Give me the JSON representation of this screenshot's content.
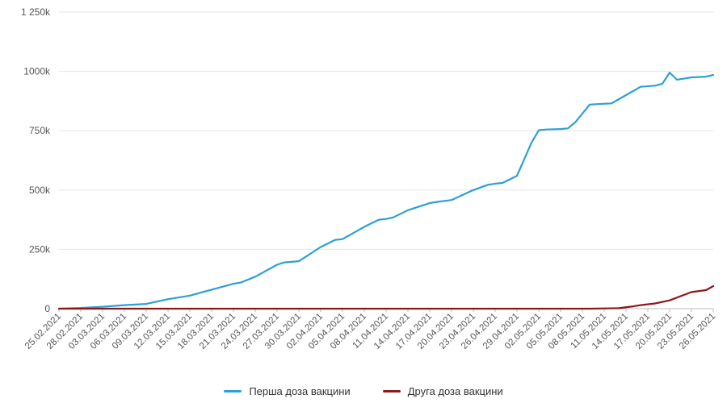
{
  "chart_data": {
    "type": "line",
    "title": "",
    "xlabel": "",
    "ylabel": "",
    "ylim": [
      0,
      1250000
    ],
    "y_ticks": [
      0,
      250000,
      500000,
      750000,
      1000000,
      1250000
    ],
    "y_tick_labels": [
      "0",
      "250k",
      "500k",
      "750k",
      "1000k",
      "1 250k"
    ],
    "x_start": "2021-02-25",
    "x_end": "2021-05-26",
    "x_tick_labels": [
      "25.02.2021",
      "28.02.2021",
      "03.03.2021",
      "06.03.2021",
      "09.03.2021",
      "12.03.2021",
      "15.03.2021",
      "18.03.2021",
      "21.03.2021",
      "24.03.2021",
      "27.03.2021",
      "30.03.2021",
      "02.04.2021",
      "05.04.2021",
      "08.04.2021",
      "11.04.2021",
      "14.04.2021",
      "17.04.2021",
      "20.04.2021",
      "23.04.2021",
      "26.04.2021",
      "29.04.2021",
      "02.05.2021",
      "05.05.2021",
      "08.05.2021",
      "11.05.2021",
      "14.05.2021",
      "17.05.2021",
      "20.05.2021",
      "23.05.2021",
      "26.05.2021"
    ],
    "grid": "horizontal",
    "legend_position": "bottom-center",
    "series": [
      {
        "name": "Перша доза вакцини",
        "color": "#2e9fd3",
        "points": [
          [
            "2021-02-25",
            0
          ],
          [
            "2021-02-28",
            3000
          ],
          [
            "2021-03-03",
            8000
          ],
          [
            "2021-03-06",
            15000
          ],
          [
            "2021-03-09",
            20000
          ],
          [
            "2021-03-12",
            40000
          ],
          [
            "2021-03-14",
            50000
          ],
          [
            "2021-03-15",
            55000
          ],
          [
            "2021-03-18",
            80000
          ],
          [
            "2021-03-21",
            105000
          ],
          [
            "2021-03-22",
            110000
          ],
          [
            "2021-03-24",
            135000
          ],
          [
            "2021-03-27",
            185000
          ],
          [
            "2021-03-28",
            195000
          ],
          [
            "2021-03-30",
            200000
          ],
          [
            "2021-04-02",
            260000
          ],
          [
            "2021-04-04",
            290000
          ],
          [
            "2021-04-05",
            293000
          ],
          [
            "2021-04-08",
            345000
          ],
          [
            "2021-04-10",
            375000
          ],
          [
            "2021-04-11",
            378000
          ],
          [
            "2021-04-12",
            385000
          ],
          [
            "2021-04-14",
            415000
          ],
          [
            "2021-04-17",
            445000
          ],
          [
            "2021-04-18",
            450000
          ],
          [
            "2021-04-20",
            458000
          ],
          [
            "2021-04-23",
            500000
          ],
          [
            "2021-04-25",
            522000
          ],
          [
            "2021-04-26",
            527000
          ],
          [
            "2021-04-27",
            530000
          ],
          [
            "2021-04-28",
            545000
          ],
          [
            "2021-04-29",
            560000
          ],
          [
            "2021-05-01",
            700000
          ],
          [
            "2021-05-02",
            752000
          ],
          [
            "2021-05-03",
            755000
          ],
          [
            "2021-05-05",
            757000
          ],
          [
            "2021-05-06",
            760000
          ],
          [
            "2021-05-07",
            785000
          ],
          [
            "2021-05-09",
            860000
          ],
          [
            "2021-05-10",
            862000
          ],
          [
            "2021-05-12",
            865000
          ],
          [
            "2021-05-16",
            935000
          ],
          [
            "2021-05-18",
            940000
          ],
          [
            "2021-05-19",
            948000
          ],
          [
            "2021-05-20",
            995000
          ],
          [
            "2021-05-21",
            965000
          ],
          [
            "2021-05-23",
            975000
          ],
          [
            "2021-05-25",
            978000
          ],
          [
            "2021-05-26",
            985000
          ]
        ]
      },
      {
        "name": "Друга доза вакцини",
        "color": "#8b1a1a",
        "points": [
          [
            "2021-02-25",
            0
          ],
          [
            "2021-05-09",
            0
          ],
          [
            "2021-05-13",
            2000
          ],
          [
            "2021-05-15",
            10000
          ],
          [
            "2021-05-16",
            15000
          ],
          [
            "2021-05-18",
            22000
          ],
          [
            "2021-05-20",
            35000
          ],
          [
            "2021-05-23",
            70000
          ],
          [
            "2021-05-25",
            78000
          ],
          [
            "2021-05-26",
            95000
          ]
        ]
      }
    ]
  }
}
